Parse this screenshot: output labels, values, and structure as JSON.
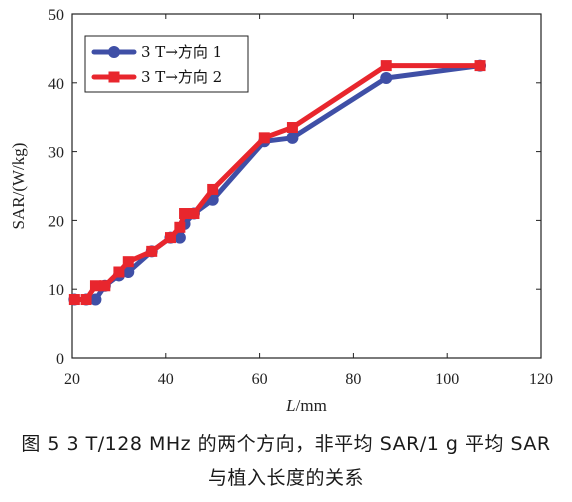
{
  "chart_data": {
    "type": "line",
    "xlabel_italic": "L",
    "xlabel_unit": "/mm",
    "ylabel": "SAR/(W/kg)",
    "xlim": [
      20,
      120
    ],
    "ylim": [
      0,
      50
    ],
    "xticks": [
      20,
      40,
      60,
      80,
      100,
      120
    ],
    "yticks": [
      0,
      10,
      20,
      30,
      40,
      50
    ],
    "legend_position": "top-left",
    "grid": false,
    "series": [
      {
        "name": "3 T→方向 1",
        "color": "#3f4fa6",
        "x": [
          20.5,
          23,
          25,
          27,
          30,
          32,
          37,
          41,
          43,
          44,
          46,
          50,
          61,
          67,
          87,
          107
        ],
        "y": [
          8.5,
          8.5,
          8.5,
          10.5,
          12,
          12.5,
          15.5,
          17.5,
          17.5,
          19.5,
          21,
          23,
          31.5,
          32,
          40.7,
          42.5
        ]
      },
      {
        "name": "3 T→方向 2",
        "color": "#e8262d",
        "x": [
          20.5,
          23,
          25,
          27,
          30,
          32,
          37,
          41,
          43,
          44,
          46,
          50,
          61,
          67,
          87,
          107
        ],
        "y": [
          8.5,
          8.5,
          10.5,
          10.5,
          12.5,
          14,
          15.5,
          17.5,
          19,
          21,
          21,
          24.5,
          32,
          33.5,
          42.5,
          42.5
        ]
      }
    ]
  },
  "caption": {
    "line1": "图 5  3 T/128 MHz 的两个方向，非平均 SAR/1 g 平均 SAR",
    "line2": "与植入长度的关系"
  }
}
